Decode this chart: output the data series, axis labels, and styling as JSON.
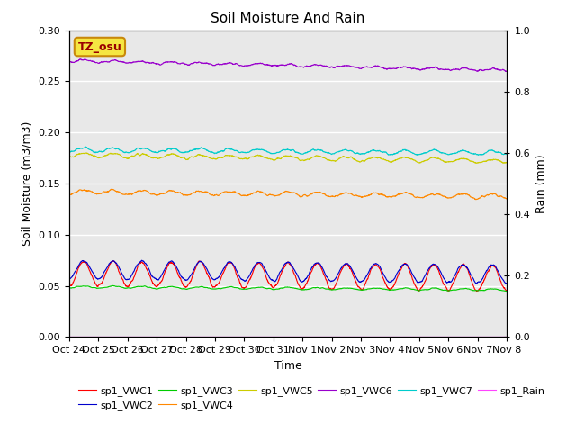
{
  "title": "Soil Moisture And Rain",
  "xlabel": "Time",
  "ylabel_left": "Soil Moisture (m3/m3)",
  "ylabel_right": "Rain (mm)",
  "annotation_text": "TZ_osu",
  "annotation_bg": "#f5e642",
  "annotation_border": "#c8880a",
  "xlim_days": [
    0,
    15
  ],
  "ylim_left": [
    0.0,
    0.3
  ],
  "ylim_right": [
    0.0,
    1.0
  ],
  "background_color": "#e8e8e8",
  "x_tick_labels": [
    "Oct 24",
    "Oct 25",
    "Oct 26",
    "Oct 27",
    "Oct 28",
    "Oct 29",
    "Oct 30",
    "Oct 31",
    "Nov 1",
    "Nov 2",
    "Nov 3",
    "Nov 4",
    "Nov 5",
    "Nov 6",
    "Nov 7",
    "Nov 8"
  ],
  "series": {
    "VWC1": {
      "color": "#ff0000",
      "base": 0.062,
      "amplitude": 0.012,
      "noise": 0.003,
      "trend": -0.0003,
      "label": "sp1_VWC1"
    },
    "VWC2": {
      "color": "#0000cc",
      "base": 0.066,
      "amplitude": 0.009,
      "noise": 0.002,
      "trend": -0.0003,
      "label": "sp1_VWC2"
    },
    "VWC3": {
      "color": "#00cc00",
      "base": 0.049,
      "amplitude": 0.001,
      "noise": 0.001,
      "trend": -0.0002,
      "label": "sp1_VWC3"
    },
    "VWC4": {
      "color": "#ff8800",
      "base": 0.142,
      "amplitude": 0.002,
      "noise": 0.002,
      "trend": -0.0003,
      "label": "sp1_VWC4"
    },
    "VWC5": {
      "color": "#cccc00",
      "base": 0.178,
      "amplitude": 0.002,
      "noise": 0.002,
      "trend": -0.0004,
      "label": "sp1_VWC5"
    },
    "VWC6": {
      "color": "#9900cc",
      "base": 0.27,
      "amplitude": 0.001,
      "noise": 0.002,
      "trend": -0.0006,
      "label": "sp1_VWC6"
    },
    "VWC7": {
      "color": "#00cccc",
      "base": 0.183,
      "amplitude": 0.002,
      "noise": 0.002,
      "trend": -0.0002,
      "label": "sp1_VWC7"
    },
    "Rain": {
      "color": "#ff44ff",
      "base": 0.0,
      "amplitude": 0.0,
      "noise": 0.0,
      "trend": 0.0,
      "label": "sp1_Rain"
    }
  },
  "title_fontsize": 11,
  "tick_fontsize": 8,
  "legend_fontsize": 8
}
